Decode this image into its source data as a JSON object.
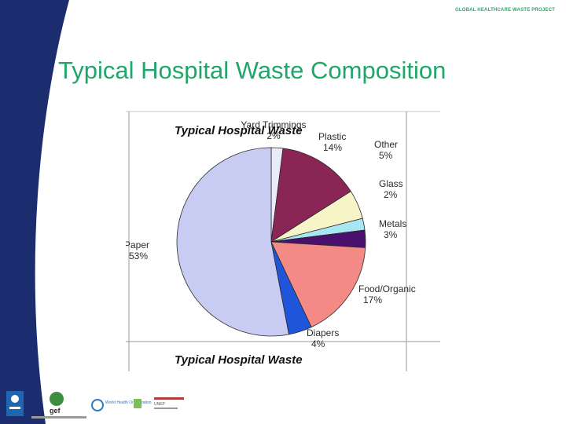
{
  "header": {
    "project_tag": "GLOBAL HEALTHCARE WASTE PROJECT"
  },
  "slide": {
    "title": "Typical Hospital Waste Composition"
  },
  "chart_data": {
    "type": "pie",
    "title": "Typical Hospital Waste",
    "slices": [
      {
        "label": "Yard Trimmings",
        "value": 2,
        "display": "2%",
        "color": "#e8ecf8"
      },
      {
        "label": "Plastic",
        "value": 14,
        "display": "14%",
        "color": "#8a2655"
      },
      {
        "label": "Other",
        "value": 5,
        "display": "5%",
        "color": "#f7f4c8"
      },
      {
        "label": "Glass",
        "value": 2,
        "display": "2%",
        "color": "#a8e6f2"
      },
      {
        "label": "Metals",
        "value": 3,
        "display": "3%",
        "color": "#4b0f6e"
      },
      {
        "label": "Food/Organic",
        "value": 17,
        "display": "17%",
        "color": "#f48a86"
      },
      {
        "label": "Diapers",
        "value": 4,
        "display": "4%",
        "color": "#1f55d8"
      },
      {
        "label": "Paper",
        "value": 53,
        "display": "53%",
        "color": "#c9ccf2"
      }
    ]
  },
  "footer": {
    "logos": [
      {
        "name": "undp-logo",
        "text": "UNDP"
      },
      {
        "name": "gef-logo",
        "text": "gef"
      },
      {
        "name": "who-logo",
        "text": "World Health Organization"
      },
      {
        "name": "unep-logo",
        "text": "UNEP"
      }
    ]
  }
}
